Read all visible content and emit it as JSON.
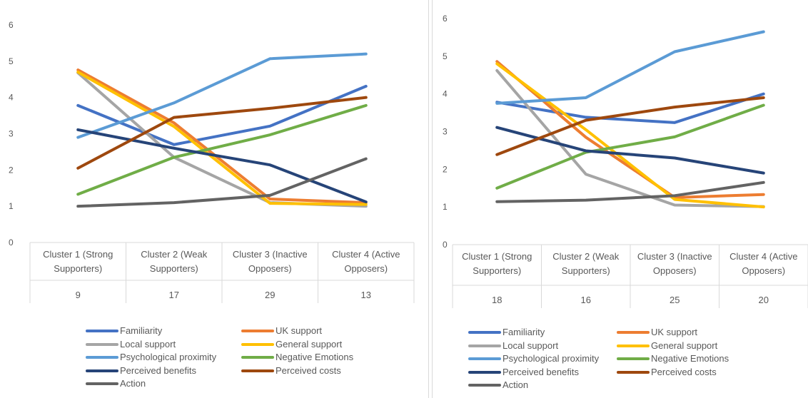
{
  "colors": {
    "Familiarity": "#4472c4",
    "UK support": "#ed7d31",
    "Local support": "#a5a5a5",
    "General support": "#ffc000",
    "Psychological proximity": "#5b9bd5",
    "Negative Emotions": "#70ad47",
    "Perceived benefits": "#264478",
    "Perceived costs": "#9e480e",
    "Action": "#636363"
  },
  "chart_data": [
    {
      "type": "line",
      "categories": [
        "Cluster 1 (Strong Supporters)",
        "Cluster 2 (Weak Supporters)",
        "Cluster 3 (Inactive Opposers)",
        "Cluster 4 (Active Opposers)"
      ],
      "category_counts": [
        "9",
        "17",
        "29",
        "13"
      ],
      "ylim": [
        0,
        6
      ],
      "yticks": [
        "0",
        "1",
        "2",
        "3",
        "4",
        "5",
        "6"
      ],
      "grid": false,
      "legend_position": "bottom",
      "series": [
        {
          "name": "Familiarity",
          "values": [
            3.78,
            2.7,
            3.21,
            4.31
          ]
        },
        {
          "name": "UK support",
          "values": [
            4.76,
            3.3,
            1.2,
            1.1
          ]
        },
        {
          "name": "Local support",
          "values": [
            4.68,
            2.35,
            1.1,
            1.0
          ]
        },
        {
          "name": "General support",
          "values": [
            4.7,
            3.2,
            1.08,
            1.05
          ]
        },
        {
          "name": "Psychological proximity",
          "values": [
            2.9,
            3.85,
            5.07,
            5.2
          ]
        },
        {
          "name": "Negative Emotions",
          "values": [
            1.33,
            2.35,
            2.97,
            3.78
          ]
        },
        {
          "name": "Perceived benefits",
          "values": [
            3.11,
            2.6,
            2.14,
            1.12
          ]
        },
        {
          "name": "Perceived costs",
          "values": [
            2.05,
            3.45,
            3.7,
            4.0
          ]
        },
        {
          "name": "Action",
          "values": [
            1.0,
            1.1,
            1.3,
            2.31
          ]
        }
      ]
    },
    {
      "type": "line",
      "categories": [
        "Cluster 1 (Strong Supporters)",
        "Cluster 2 (Weak Supporters)",
        "Cluster 3 (Inactive Opposers)",
        "Cluster 4 (Active Opposers)"
      ],
      "category_counts": [
        "18",
        "16",
        "25",
        "20"
      ],
      "ylim": [
        0,
        6
      ],
      "yticks": [
        "0",
        "1",
        "2",
        "3",
        "4",
        "5",
        "6"
      ],
      "grid": false,
      "legend_position": "bottom",
      "series": [
        {
          "name": "Familiarity",
          "values": [
            3.78,
            3.38,
            3.24,
            4.0
          ]
        },
        {
          "name": "UK support",
          "values": [
            4.86,
            2.85,
            1.25,
            1.33
          ]
        },
        {
          "name": "Local support",
          "values": [
            4.62,
            1.87,
            1.05,
            1.01
          ]
        },
        {
          "name": "General support",
          "values": [
            4.8,
            3.05,
            1.2,
            1.0
          ]
        },
        {
          "name": "Psychological proximity",
          "values": [
            3.75,
            3.9,
            5.12,
            5.65
          ]
        },
        {
          "name": "Negative Emotions",
          "values": [
            1.5,
            2.45,
            2.86,
            3.7
          ]
        },
        {
          "name": "Perceived benefits",
          "values": [
            3.11,
            2.49,
            2.3,
            1.9
          ]
        },
        {
          "name": "Perceived costs",
          "values": [
            2.39,
            3.3,
            3.65,
            3.9
          ]
        },
        {
          "name": "Action",
          "values": [
            1.14,
            1.18,
            1.3,
            1.65
          ]
        }
      ]
    }
  ]
}
